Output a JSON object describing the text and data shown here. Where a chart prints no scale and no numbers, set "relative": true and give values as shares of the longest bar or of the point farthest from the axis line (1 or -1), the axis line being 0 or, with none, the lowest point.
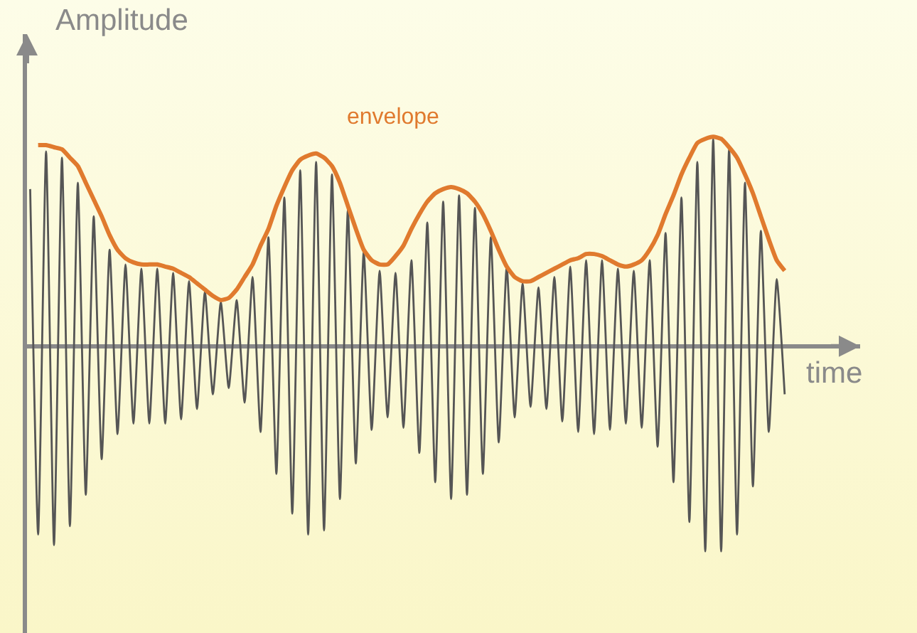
{
  "chart_data": {
    "type": "line",
    "relative": true,
    "xlabel": "time",
    "ylabel": "Amplitude",
    "categories": [
      null,
      null,
      null,
      null,
      null,
      null,
      null,
      null,
      null,
      null,
      null,
      null,
      null,
      null,
      null,
      null,
      null,
      null,
      null,
      null,
      null,
      null,
      null,
      null,
      null,
      null,
      null,
      null,
      null,
      null,
      null,
      null,
      null,
      null,
      null,
      null,
      null,
      null,
      null,
      null,
      null,
      null,
      null,
      null,
      null,
      null,
      null,
      null,
      null,
      null,
      null,
      null,
      null,
      null,
      null,
      null,
      null,
      null,
      null,
      null,
      null,
      null,
      null,
      null,
      null,
      null,
      null,
      null,
      null,
      null,
      null,
      null,
      null,
      null,
      null,
      null,
      null,
      null,
      null,
      null,
      null,
      null,
      null,
      null,
      null,
      null,
      null,
      null,
      null,
      null,
      null,
      null,
      null,
      null,
      null,
      null
    ],
    "series": [
      {
        "color": "#555555",
        "values": [
          0.75,
          -0.9,
          0.93,
          -0.95,
          0.9,
          -0.86,
          0.78,
          -0.71,
          0.62,
          -0.54,
          0.46,
          -0.42,
          0.39,
          -0.37,
          0.37,
          -0.37,
          0.37,
          -0.37,
          0.35,
          -0.35,
          0.31,
          -0.3,
          0.26,
          -0.23,
          0.21,
          -0.2,
          0.22,
          -0.27,
          0.33,
          -0.41,
          0.52,
          -0.61,
          0.71,
          -0.8,
          0.84,
          -0.9,
          0.88,
          -0.88,
          0.82,
          -0.73,
          0.65,
          -0.56,
          0.45,
          -0.4,
          0.36,
          -0.34,
          0.35,
          -0.39,
          0.41,
          -0.51,
          0.59,
          -0.65,
          0.69,
          -0.73,
          0.72,
          -0.71,
          0.66,
          -0.61,
          0.52,
          -0.46,
          0.38,
          -0.34,
          0.3,
          -0.29,
          0.28,
          -0.3,
          0.33,
          -0.36,
          0.38,
          -0.41,
          0.41,
          -0.42,
          0.41,
          -0.4,
          0.37,
          -0.37,
          0.36,
          -0.39,
          0.41,
          -0.48,
          0.54,
          -0.65,
          0.71,
          -0.84,
          0.88,
          -0.98,
          0.99,
          -0.98,
          0.94,
          -0.9,
          0.78,
          -0.67,
          0.55,
          -0.41,
          0.32,
          -0.23
        ]
      },
      {
        "name": "envelope",
        "color": "#e07a2e",
        "values": [
          null,
          0.96,
          0.96,
          0.95,
          0.94,
          0.9,
          0.86,
          0.78,
          0.7,
          0.62,
          0.53,
          0.46,
          0.42,
          0.4,
          0.39,
          0.39,
          0.39,
          0.38,
          0.37,
          0.35,
          0.33,
          0.3,
          0.27,
          0.24,
          0.22,
          0.23,
          0.27,
          0.33,
          0.39,
          0.48,
          0.56,
          0.67,
          0.76,
          0.84,
          0.89,
          0.91,
          0.92,
          0.9,
          0.86,
          0.78,
          0.67,
          0.56,
          0.46,
          0.41,
          0.39,
          0.39,
          0.43,
          0.48,
          0.56,
          0.63,
          0.69,
          0.73,
          0.75,
          0.76,
          0.75,
          0.73,
          0.69,
          0.63,
          0.55,
          0.46,
          0.38,
          0.33,
          0.31,
          0.31,
          0.33,
          0.35,
          0.37,
          0.39,
          0.41,
          0.42,
          0.44,
          0.44,
          0.43,
          0.41,
          0.39,
          0.38,
          0.39,
          0.41,
          0.46,
          0.53,
          0.63,
          0.72,
          0.82,
          0.9,
          0.97,
          0.99,
          1.0,
          0.99,
          0.95,
          0.9,
          0.82,
          0.73,
          0.62,
          0.51,
          0.41,
          0.36
        ]
      }
    ]
  }
}
